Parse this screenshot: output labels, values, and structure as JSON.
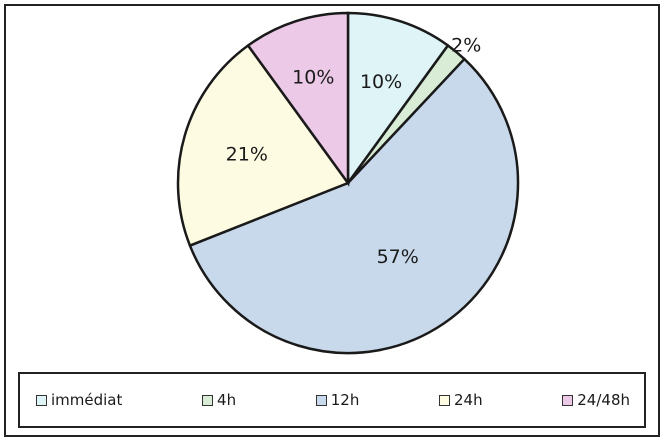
{
  "chart_data": {
    "type": "pie",
    "categories": [
      "immédiat",
      "4h",
      "12h",
      "24h",
      "24/48h"
    ],
    "values": [
      10,
      2,
      57,
      21,
      10
    ],
    "labels": [
      "10%",
      "2%",
      "57%",
      "21%",
      "10%"
    ],
    "colors": [
      "#dff4f7",
      "#d8ecd6",
      "#c9d9ec",
      "#fdfbe2",
      "#ecc9e6"
    ],
    "legend_position": "bottom",
    "start_angle_deg": 0,
    "direction": "clockwise"
  }
}
